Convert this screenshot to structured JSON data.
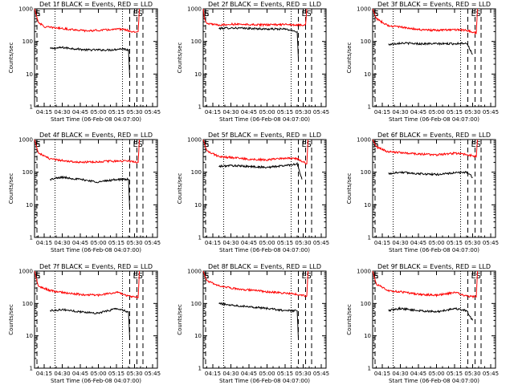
{
  "page": {
    "background": "#ffffff",
    "events_color": "#000000",
    "lld_color": "#ff0000"
  },
  "chart_data": [
    {
      "type": "line",
      "title": "Det 1f BLACK = Events, RED = LLD",
      "xlabel": "Start Time (06-Feb-08 04:07:00)",
      "ylabel": "Counts/sec",
      "y_scale": "log",
      "ylim": [
        1,
        1000
      ],
      "y_ticks": [
        1,
        10,
        100,
        1000
      ],
      "y_tick_labels": [
        "1",
        "10",
        "100",
        "1000"
      ],
      "x_ticks": [
        "04:15",
        "04:30",
        "04:45",
        "05:00",
        "05:15",
        "05:30",
        "05:45"
      ],
      "markers": [
        "E",
        "E",
        "S"
      ],
      "series": [
        {
          "name": "BLACK = Events",
          "color": "#000000",
          "x": [
            "04:15",
            "04:20",
            "04:30",
            "04:40",
            "04:50",
            "05:00",
            "05:10",
            "05:20",
            "05:25",
            "05:26"
          ],
          "values": [
            null,
            60,
            65,
            60,
            55,
            55,
            55,
            60,
            55,
            8
          ]
        },
        {
          "name": "RED = LLD",
          "color": "#ff0000",
          "x": [
            "04:07",
            "04:10",
            "04:15",
            "04:20",
            "04:30",
            "04:40",
            "04:50",
            "05:00",
            "05:10",
            "05:20",
            "05:30",
            "05:33",
            "05:34"
          ],
          "values": [
            1000,
            400,
            280,
            270,
            250,
            230,
            210,
            220,
            230,
            240,
            190,
            200,
            1000
          ]
        }
      ]
    },
    {
      "type": "line",
      "title": "Det 2f BLACK = Events, RED = LLD",
      "xlabel": "Start Time (06-Feb-08 04:07:00)",
      "ylabel": "Counts/sec",
      "y_scale": "log",
      "ylim": [
        1,
        1000
      ],
      "y_ticks": [
        1,
        10,
        100,
        1000
      ],
      "y_tick_labels": [
        "1",
        "10",
        "100",
        "1000"
      ],
      "x_ticks": [
        "04:15",
        "04:30",
        "04:45",
        "05:00",
        "05:15",
        "05:30",
        "05:45"
      ],
      "markers": [
        "E",
        "E",
        "S"
      ],
      "series": [
        {
          "name": "BLACK = Events",
          "color": "#000000",
          "x": [
            "04:20",
            "04:30",
            "04:45",
            "05:00",
            "05:15",
            "05:25",
            "05:26"
          ],
          "values": [
            250,
            260,
            250,
            240,
            240,
            200,
            30
          ]
        },
        {
          "name": "RED = LLD",
          "color": "#ff0000",
          "x": [
            "04:07",
            "04:08",
            "04:10",
            "04:20",
            "04:30",
            "04:45",
            "05:00",
            "05:15",
            "05:28",
            "05:32",
            "05:33"
          ],
          "values": [
            1000,
            500,
            350,
            320,
            340,
            330,
            320,
            330,
            320,
            330,
            1000
          ]
        }
      ]
    },
    {
      "type": "line",
      "title": "Det 3f BLACK = Events, RED = LLD",
      "xlabel": "Start Time (06-Feb-08 04:07:00)",
      "ylabel": "Counts/sec",
      "y_scale": "log",
      "ylim": [
        1,
        1000
      ],
      "y_ticks": [
        1,
        10,
        100,
        1000
      ],
      "y_tick_labels": [
        "1",
        "10",
        "100",
        "1000"
      ],
      "x_ticks": [
        "04:15",
        "04:30",
        "04:45",
        "05:00",
        "05:15",
        "05:30",
        "05:45"
      ],
      "markers": [
        "E",
        "E",
        "S"
      ],
      "series": [
        {
          "name": "BLACK = Events",
          "color": "#000000",
          "x": [
            "04:20",
            "04:30",
            "04:45",
            "05:00",
            "05:15",
            "05:25",
            "05:30"
          ],
          "values": [
            80,
            90,
            85,
            85,
            85,
            90,
            40
          ]
        },
        {
          "name": "RED = LLD",
          "color": "#ff0000",
          "x": [
            "04:07",
            "04:10",
            "04:20",
            "04:30",
            "04:45",
            "05:00",
            "05:15",
            "05:25",
            "05:33",
            "05:34"
          ],
          "values": [
            1000,
            500,
            300,
            280,
            230,
            220,
            230,
            220,
            180,
            1000
          ]
        }
      ]
    },
    {
      "type": "line",
      "title": "Det 4f BLACK = Events, RED = LLD",
      "xlabel": "Start Time (06-Feb-08 04:07:00)",
      "ylabel": "Counts/sec",
      "y_scale": "log",
      "ylim": [
        1,
        1000
      ],
      "y_ticks": [
        1,
        10,
        100,
        1000
      ],
      "y_tick_labels": [
        "1",
        "10",
        "100",
        "1000"
      ],
      "x_ticks": [
        "04:15",
        "04:30",
        "04:45",
        "05:00",
        "05:15",
        "05:30",
        "05:45"
      ],
      "markers": [
        "E",
        "E",
        "S"
      ],
      "series": [
        {
          "name": "BLACK = Events",
          "color": "#000000",
          "x": [
            "04:20",
            "04:30",
            "04:45",
            "05:00",
            "05:15",
            "05:25",
            "05:26"
          ],
          "values": [
            60,
            70,
            60,
            50,
            60,
            60,
            7
          ]
        },
        {
          "name": "RED = LLD",
          "color": "#ff0000",
          "x": [
            "04:07",
            "04:10",
            "04:20",
            "04:30",
            "04:45",
            "05:00",
            "05:15",
            "05:25",
            "05:33",
            "05:34"
          ],
          "values": [
            1000,
            400,
            250,
            230,
            200,
            210,
            220,
            220,
            200,
            1000
          ]
        }
      ]
    },
    {
      "type": "line",
      "title": "Det 5f BLACK = Events, RED = LLD",
      "xlabel": "Start Time (06-Feb-08 04:07:00)",
      "ylabel": "Counts/sec",
      "y_scale": "log",
      "ylim": [
        1,
        1000
      ],
      "y_ticks": [
        1,
        10,
        100,
        1000
      ],
      "y_tick_labels": [
        "1",
        "10",
        "100",
        "1000"
      ],
      "x_ticks": [
        "04:15",
        "04:30",
        "04:45",
        "05:00",
        "05:15",
        "05:30",
        "05:45"
      ],
      "markers": [
        "E",
        "E",
        "S"
      ],
      "series": [
        {
          "name": "BLACK = Events",
          "color": "#000000",
          "x": [
            "04:20",
            "04:30",
            "04:45",
            "05:00",
            "05:15",
            "05:25",
            "05:29"
          ],
          "values": [
            150,
            160,
            150,
            140,
            160,
            180,
            60
          ]
        },
        {
          "name": "RED = LLD",
          "color": "#ff0000",
          "x": [
            "04:07",
            "04:10",
            "04:20",
            "04:30",
            "04:45",
            "05:00",
            "05:15",
            "05:25",
            "05:33",
            "05:34"
          ],
          "values": [
            1000,
            450,
            300,
            280,
            250,
            240,
            270,
            260,
            180,
            1000
          ]
        }
      ]
    },
    {
      "type": "line",
      "title": "Det 6f BLACK = Events, RED = LLD",
      "xlabel": "Start Time (06-Feb-08 04:07:00)",
      "ylabel": "Counts/sec",
      "y_scale": "log",
      "ylim": [
        1,
        1000
      ],
      "y_ticks": [
        1,
        10,
        100,
        1000
      ],
      "y_tick_labels": [
        "1",
        "10",
        "100",
        "1000"
      ],
      "x_ticks": [
        "04:15",
        "04:30",
        "04:45",
        "05:00",
        "05:15",
        "05:30",
        "05:45"
      ],
      "markers": [
        "E",
        "E",
        "S"
      ],
      "series": [
        {
          "name": "BLACK = Events",
          "color": "#000000",
          "x": [
            "04:20",
            "04:30",
            "04:45",
            "05:00",
            "05:15",
            "05:25",
            "05:30"
          ],
          "values": [
            90,
            100,
            90,
            85,
            95,
            100,
            70
          ]
        },
        {
          "name": "RED = LLD",
          "color": "#ff0000",
          "x": [
            "04:07",
            "04:10",
            "04:20",
            "04:30",
            "04:45",
            "05:00",
            "05:15",
            "05:25",
            "05:33",
            "05:34"
          ],
          "values": [
            1000,
            600,
            420,
            400,
            360,
            340,
            380,
            350,
            300,
            1000
          ]
        }
      ]
    },
    {
      "type": "line",
      "title": "Det 7f BLACK = Events, RED = LLD",
      "xlabel": "Start Time (06-Feb-08 04:07:00)",
      "ylabel": "Counts/sec",
      "y_scale": "log",
      "ylim": [
        1,
        1000
      ],
      "y_ticks": [
        1,
        10,
        100,
        1000
      ],
      "y_tick_labels": [
        "1",
        "10",
        "100",
        "1000"
      ],
      "x_ticks": [
        "04:15",
        "04:30",
        "04:45",
        "05:00",
        "05:15",
        "05:30",
        "05:45"
      ],
      "markers": [
        "E",
        "E",
        "S"
      ],
      "series": [
        {
          "name": "BLACK = Events",
          "color": "#000000",
          "x": [
            "04:20",
            "04:30",
            "04:45",
            "05:00",
            "05:15",
            "05:25",
            "05:26"
          ],
          "values": [
            60,
            65,
            55,
            50,
            70,
            55,
            8
          ]
        },
        {
          "name": "RED = LLD",
          "color": "#ff0000",
          "x": [
            "04:07",
            "04:10",
            "04:20",
            "04:30",
            "04:45",
            "05:00",
            "05:15",
            "05:25",
            "05:33",
            "05:34"
          ],
          "values": [
            1000,
            350,
            250,
            220,
            190,
            180,
            220,
            170,
            150,
            1000
          ]
        }
      ]
    },
    {
      "type": "line",
      "title": "Det 8f BLACK = Events, RED = LLD",
      "xlabel": "Start Time (06-Feb-08 04:07:00)",
      "ylabel": "Counts/sec",
      "y_scale": "log",
      "ylim": [
        1,
        1000
      ],
      "y_ticks": [
        1,
        10,
        100,
        1000
      ],
      "y_tick_labels": [
        "1",
        "10",
        "100",
        "1000"
      ],
      "x_ticks": [
        "04:15",
        "04:30",
        "04:45",
        "05:00",
        "05:15",
        "05:30",
        "05:45"
      ],
      "markers": [
        "E",
        "E",
        "S"
      ],
      "series": [
        {
          "name": "BLACK = Events",
          "color": "#000000",
          "x": [
            "04:20",
            "04:30",
            "04:45",
            "05:00",
            "05:15",
            "05:25",
            "05:26"
          ],
          "values": [
            100,
            90,
            80,
            70,
            60,
            60,
            8
          ]
        },
        {
          "name": "RED = LLD",
          "color": "#ff0000",
          "x": [
            "04:07",
            "04:10",
            "04:20",
            "04:30",
            "04:45",
            "05:00",
            "05:15",
            "05:25",
            "05:33",
            "05:34"
          ],
          "values": [
            1000,
            500,
            350,
            300,
            260,
            230,
            210,
            190,
            170,
            1000
          ]
        }
      ]
    },
    {
      "type": "line",
      "title": "Det 9f BLACK = Events, RED = LLD",
      "xlabel": "Start Time (06-Feb-08 04:07:00)",
      "ylabel": "Counts/sec",
      "y_scale": "log",
      "ylim": [
        1,
        1000
      ],
      "y_ticks": [
        1,
        10,
        100,
        1000
      ],
      "y_tick_labels": [
        "1",
        "10",
        "100",
        "1000"
      ],
      "x_ticks": [
        "04:15",
        "04:30",
        "04:45",
        "05:00",
        "05:15",
        "05:30",
        "05:45"
      ],
      "markers": [
        "E",
        "E",
        "S"
      ],
      "series": [
        {
          "name": "BLACK = Events",
          "color": "#000000",
          "x": [
            "04:20",
            "04:30",
            "04:45",
            "05:00",
            "05:15",
            "05:25",
            "05:30"
          ],
          "values": [
            60,
            70,
            60,
            55,
            70,
            60,
            30
          ]
        },
        {
          "name": "RED = LLD",
          "color": "#ff0000",
          "x": [
            "04:07",
            "04:10",
            "04:20",
            "04:30",
            "04:45",
            "05:00",
            "05:15",
            "05:25",
            "05:33",
            "05:34"
          ],
          "values": [
            1000,
            400,
            250,
            230,
            190,
            180,
            220,
            170,
            160,
            1000
          ]
        }
      ]
    }
  ]
}
